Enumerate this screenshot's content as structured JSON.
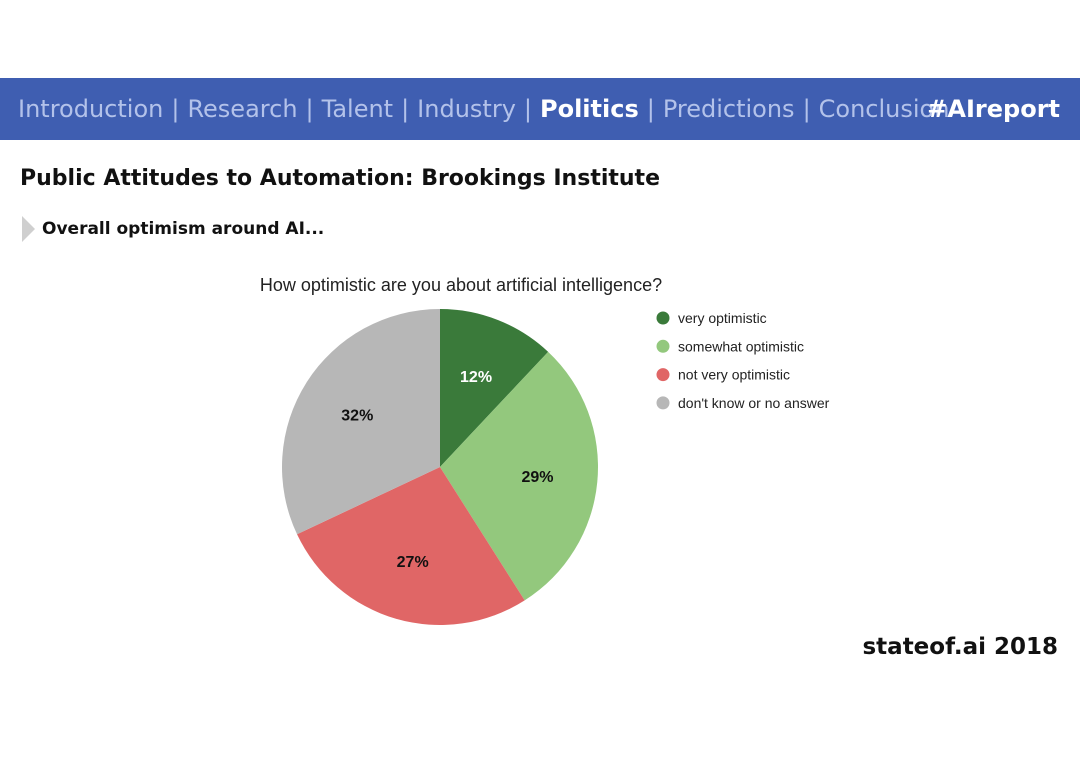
{
  "nav": {
    "items": [
      {
        "label": "Introduction",
        "active": false
      },
      {
        "label": "Research",
        "active": false
      },
      {
        "label": "Talent",
        "active": false
      },
      {
        "label": "Industry",
        "active": false
      },
      {
        "label": "Politics",
        "active": true
      },
      {
        "label": "Predictions",
        "active": false
      },
      {
        "label": "Conclusion",
        "active": false
      }
    ],
    "separator": "|",
    "hashtag": "#AIreport",
    "bar_color": "#3f5eb1"
  },
  "page": {
    "title": "Public Attitudes to Automation: Brookings Institute",
    "subtitle": "Overall optimism around AI..."
  },
  "footer": {
    "brand": "stateof.ai 2018"
  },
  "chart_data": {
    "type": "pie",
    "title": "How optimistic are you about artificial intelligence?",
    "start_angle": "12 o'clock",
    "direction": "clockwise",
    "legend_position": "right",
    "slices": [
      {
        "label": "very optimistic",
        "value": 12,
        "display": "12%",
        "color": "#3a7a3a",
        "label_color": "#ffffff"
      },
      {
        "label": "somewhat optimistic",
        "value": 29,
        "display": "29%",
        "color": "#93c87d",
        "label_color": "#111111"
      },
      {
        "label": "not very optimistic",
        "value": 27,
        "display": "27%",
        "color": "#e06666",
        "label_color": "#111111"
      },
      {
        "label": "don't know or no answer",
        "value": 32,
        "display": "32%",
        "color": "#b7b7b7",
        "label_color": "#111111"
      }
    ]
  }
}
